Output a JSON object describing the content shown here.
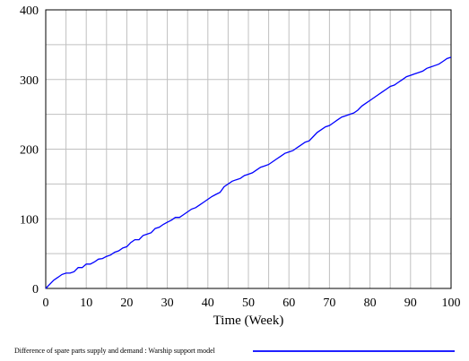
{
  "chart_data": {
    "type": "line",
    "xlabel": "Time (Week)",
    "x_ticks": [
      "0",
      "10",
      "20",
      "30",
      "40",
      "50",
      "60",
      "70",
      "80",
      "90",
      "100"
    ],
    "y_ticks": [
      "0",
      "100",
      "200",
      "300",
      "400"
    ],
    "xlim": [
      0,
      100
    ],
    "ylim": [
      0,
      400
    ],
    "grid": true,
    "legend_position": "bottom",
    "series": [
      {
        "name": "Difference of spare parts supply and demand : Warship support model",
        "color": "#0000ff",
        "x": [
          0,
          1,
          2,
          3,
          4,
          5,
          6,
          7,
          8,
          9,
          10,
          11,
          12,
          13,
          14,
          15,
          16,
          17,
          18,
          19,
          20,
          21,
          22,
          23,
          24,
          25,
          26,
          27,
          28,
          29,
          30,
          31,
          32,
          33,
          34,
          35,
          36,
          37,
          38,
          39,
          40,
          41,
          42,
          43,
          44,
          45,
          46,
          47,
          48,
          49,
          50,
          51,
          52,
          53,
          54,
          55,
          56,
          57,
          58,
          59,
          60,
          61,
          62,
          63,
          64,
          65,
          66,
          67,
          68,
          69,
          70,
          71,
          72,
          73,
          74,
          75,
          76,
          77,
          78,
          79,
          80,
          81,
          82,
          83,
          84,
          85,
          86,
          87,
          88,
          89,
          90,
          91,
          92,
          93,
          94,
          95,
          96,
          97,
          98,
          99,
          100
        ],
        "values": [
          0,
          6,
          12,
          16,
          20,
          22,
          22,
          24,
          30,
          30,
          35,
          35,
          38,
          42,
          43,
          46,
          48,
          52,
          54,
          58,
          60,
          66,
          70,
          70,
          76,
          78,
          80,
          86,
          88,
          92,
          95,
          98,
          102,
          102,
          106,
          110,
          114,
          116,
          120,
          124,
          128,
          132,
          135,
          138,
          146,
          150,
          154,
          156,
          158,
          162,
          164,
          166,
          170,
          174,
          176,
          178,
          182,
          186,
          190,
          194,
          196,
          198,
          202,
          206,
          210,
          212,
          218,
          224,
          228,
          232,
          234,
          238,
          242,
          246,
          248,
          250,
          252,
          256,
          262,
          266,
          270,
          274,
          278,
          282,
          286,
          290,
          292,
          296,
          300,
          304,
          306,
          308,
          310,
          312,
          316,
          318,
          320,
          322,
          326,
          330,
          332
        ]
      }
    ]
  }
}
